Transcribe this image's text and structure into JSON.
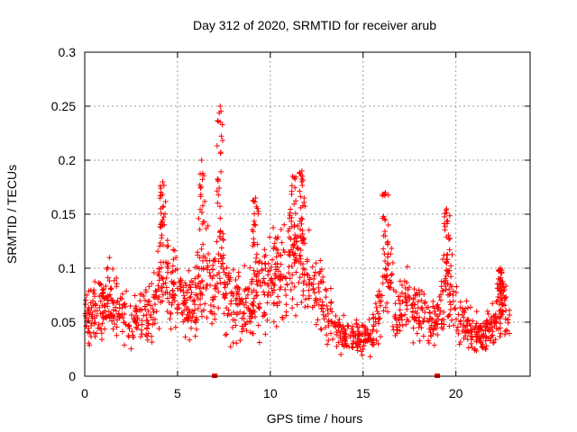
{
  "chart_data": {
    "type": "scatter",
    "title": "Day 312 of 2020, SRMTID for receiver arub",
    "xlabel": "GPS time / hours",
    "ylabel": "SRMTID / TECUs",
    "xlim": [
      0,
      24
    ],
    "ylim": [
      0,
      0.3
    ],
    "xticks": [
      0,
      5,
      10,
      15,
      20
    ],
    "yticks": [
      0,
      0.05,
      0.1,
      0.15,
      0.2,
      0.25,
      0.3
    ],
    "xtick_labels": [
      "0",
      "5",
      "10",
      "15",
      "20"
    ],
    "ytick_labels": [
      "0",
      "0.05",
      "0.1",
      "0.15",
      "0.2",
      "0.25",
      "0.3"
    ],
    "grid": true,
    "marker": "+",
    "color": "#ff0000",
    "data_span_hours": [
      0,
      22.9
    ],
    "baseline_markers_x": [
      7,
      19
    ],
    "profile": [
      [
        0.0,
        0.055
      ],
      [
        0.5,
        0.06
      ],
      [
        1.0,
        0.065
      ],
      [
        1.5,
        0.07
      ],
      [
        2.0,
        0.06
      ],
      [
        2.5,
        0.05
      ],
      [
        3.0,
        0.055
      ],
      [
        3.5,
        0.06
      ],
      [
        4.0,
        0.075
      ],
      [
        4.3,
        0.12
      ],
      [
        4.6,
        0.08
      ],
      [
        5.0,
        0.075
      ],
      [
        5.5,
        0.065
      ],
      [
        6.0,
        0.07
      ],
      [
        6.5,
        0.1
      ],
      [
        6.9,
        0.075
      ],
      [
        7.3,
        0.12
      ],
      [
        7.6,
        0.08
      ],
      [
        8.0,
        0.07
      ],
      [
        8.5,
        0.065
      ],
      [
        9.0,
        0.075
      ],
      [
        9.5,
        0.08
      ],
      [
        10.0,
        0.09
      ],
      [
        10.5,
        0.095
      ],
      [
        11.0,
        0.1
      ],
      [
        11.5,
        0.11
      ],
      [
        12.0,
        0.1
      ],
      [
        12.5,
        0.08
      ],
      [
        13.0,
        0.06
      ],
      [
        13.5,
        0.045
      ],
      [
        14.0,
        0.04
      ],
      [
        14.5,
        0.035
      ],
      [
        15.0,
        0.035
      ],
      [
        15.5,
        0.04
      ],
      [
        16.0,
        0.06
      ],
      [
        16.3,
        0.1
      ],
      [
        16.7,
        0.06
      ],
      [
        17.0,
        0.055
      ],
      [
        17.5,
        0.07
      ],
      [
        18.0,
        0.06
      ],
      [
        18.5,
        0.05
      ],
      [
        19.0,
        0.05
      ],
      [
        19.3,
        0.08
      ],
      [
        19.6,
        0.085
      ],
      [
        20.0,
        0.06
      ],
      [
        20.5,
        0.05
      ],
      [
        21.0,
        0.04
      ],
      [
        21.5,
        0.04
      ],
      [
        22.0,
        0.045
      ],
      [
        22.5,
        0.07
      ],
      [
        22.9,
        0.05
      ]
    ],
    "peaks": [
      {
        "x": 4.2,
        "y": 0.18
      },
      {
        "x": 6.3,
        "y": 0.2
      },
      {
        "x": 7.3,
        "y": 0.25
      },
      {
        "x": 9.2,
        "y": 0.165
      },
      {
        "x": 11.2,
        "y": 0.185
      },
      {
        "x": 11.7,
        "y": 0.19
      },
      {
        "x": 16.2,
        "y": 0.17
      },
      {
        "x": 19.5,
        "y": 0.155
      },
      {
        "x": 22.4,
        "y": 0.1
      }
    ]
  }
}
